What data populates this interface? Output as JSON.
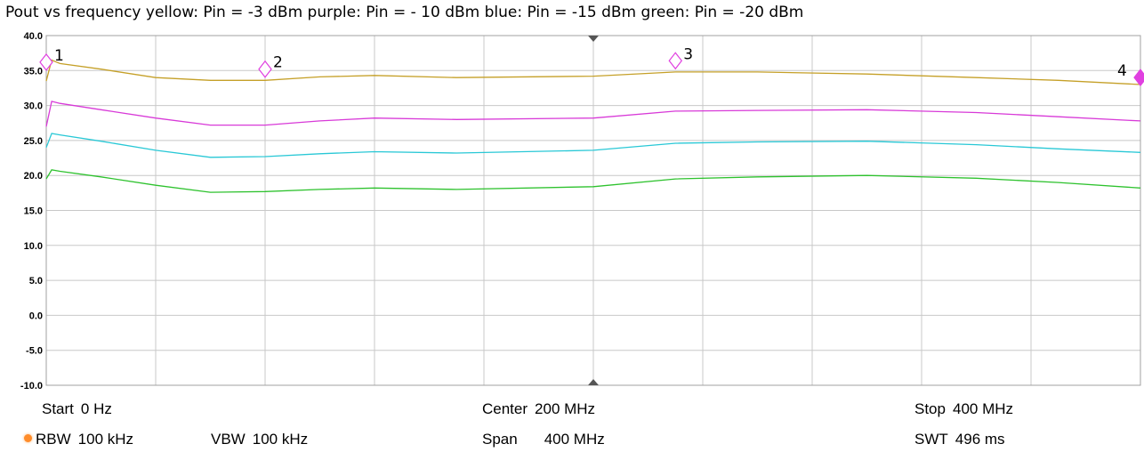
{
  "chart_data": {
    "type": "line",
    "title": "Pout vs frequency   yellow: Pin = -3 dBm   purple: Pin = - 10 dBm   blue: Pin = -15 dBm   green: Pin = -20 dBm",
    "xlabel": "",
    "ylabel": "",
    "xlim": [
      0,
      400
    ],
    "ylim": [
      -10,
      40
    ],
    "y_ticks": [
      "40.0",
      "35.0",
      "30.0",
      "25.0",
      "20.0",
      "15.0",
      "10.0",
      "5.0",
      "0.0",
      "-5.0",
      "-10.0"
    ],
    "grid": true,
    "x": [
      0,
      2,
      5,
      20,
      40,
      60,
      80,
      100,
      120,
      150,
      200,
      230,
      260,
      300,
      340,
      370,
      400
    ],
    "series": [
      {
        "color": "#c5a028",
        "values": [
          33.5,
          36.5,
          36.0,
          35.2,
          34.0,
          33.6,
          33.6,
          34.1,
          34.3,
          34.0,
          34.2,
          34.8,
          34.8,
          34.5,
          34.0,
          33.6,
          33.0
        ]
      },
      {
        "color": "#d83ad8",
        "values": [
          27.0,
          30.6,
          30.3,
          29.4,
          28.2,
          27.2,
          27.2,
          27.8,
          28.2,
          28.0,
          28.2,
          29.2,
          29.3,
          29.4,
          29.0,
          28.4,
          27.8
        ]
      },
      {
        "color": "#29c8d6",
        "values": [
          24.0,
          26.0,
          25.8,
          24.9,
          23.6,
          22.6,
          22.7,
          23.1,
          23.4,
          23.2,
          23.6,
          24.6,
          24.8,
          24.9,
          24.4,
          23.8,
          23.3
        ]
      },
      {
        "color": "#2ec22e",
        "values": [
          19.5,
          20.8,
          20.6,
          19.8,
          18.6,
          17.6,
          17.7,
          18.0,
          18.2,
          18.0,
          18.4,
          19.5,
          19.8,
          20.0,
          19.6,
          19.0,
          18.2
        ]
      }
    ],
    "markers": [
      {
        "label": "1",
        "x": 0,
        "y": 36.2
      },
      {
        "label": "2",
        "x": 80,
        "y": 35.2
      },
      {
        "label": "3",
        "x": 230,
        "y": 36.4
      },
      {
        "label": "4",
        "x": 400,
        "y": 34.0
      }
    ],
    "marker_color": "#e040e0",
    "grid_color": "#c8c8c8"
  },
  "settings": {
    "start": {
      "label": "Start",
      "value": "0 Hz"
    },
    "center": {
      "label": "Center",
      "value": "200 MHz"
    },
    "stop": {
      "label": "Stop",
      "value": "400 MHz"
    },
    "rbw": {
      "label": "RBW",
      "value": "100 kHz"
    },
    "vbw": {
      "label": "VBW",
      "value": "100 kHz"
    },
    "span": {
      "label": "Span",
      "value": "400 MHz"
    },
    "swt": {
      "label": "SWT",
      "value": "496 ms"
    }
  }
}
